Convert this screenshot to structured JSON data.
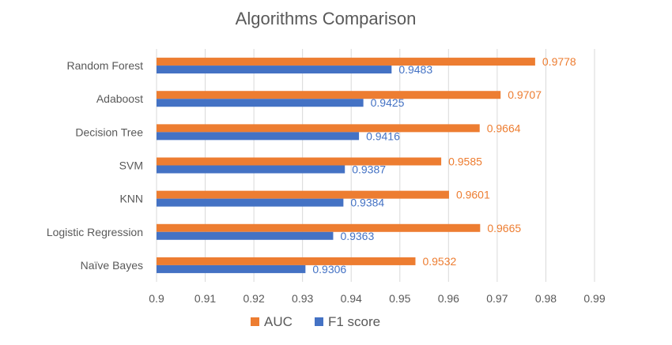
{
  "chart_data": {
    "type": "bar",
    "orientation": "horizontal",
    "title": "Algorithms Comparison",
    "xlabel": "",
    "ylabel": "",
    "categories": [
      "Random Forest",
      "Adaboost",
      "Decision Tree",
      "SVM",
      "KNN",
      "Logistic Regression",
      "Naïve Bayes"
    ],
    "series": [
      {
        "name": "AUC",
        "color": "#ED7D31",
        "values": [
          0.9778,
          0.9707,
          0.9664,
          0.9585,
          0.9601,
          0.9665,
          0.9532
        ],
        "labels": [
          "0.9778",
          "0.9707",
          "0.9664",
          "0.9585",
          "0.9601",
          "0.9665",
          "0.9532"
        ]
      },
      {
        "name": "F1 score",
        "color": "#4472C4",
        "values": [
          0.9483,
          0.9425,
          0.9416,
          0.9387,
          0.9384,
          0.9363,
          0.9306
        ],
        "labels": [
          "0.9483",
          "0.9425",
          "0.9416",
          "0.9387",
          "0.9384",
          "0.9363",
          "0.9306"
        ]
      }
    ],
    "xlim": [
      0.9,
      0.99
    ],
    "xticks": [
      "0.9",
      "0.91",
      "0.92",
      "0.93",
      "0.94",
      "0.95",
      "0.96",
      "0.97",
      "0.98",
      "0.99"
    ],
    "grid": true,
    "legend_position": "bottom-left"
  }
}
